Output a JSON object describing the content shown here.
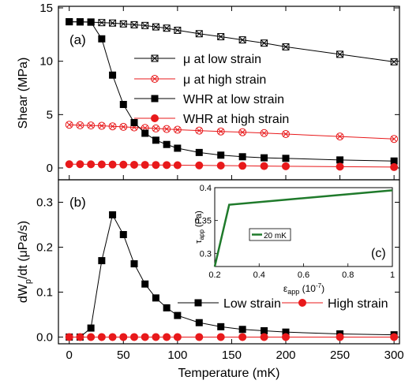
{
  "chart_data": [
    {
      "panel": "(a)",
      "type": "scatter",
      "ylabel": "Shear (MPa)",
      "ylim": [
        0,
        15
      ],
      "yticks": [
        "0",
        "5",
        "10",
        "15"
      ],
      "xlim": [
        -10,
        305
      ],
      "series": [
        {
          "name": "μ at low strain",
          "color": "#000000",
          "marker": "x-square",
          "points": [
            [
              0,
              13.7
            ],
            [
              10,
              13.68
            ],
            [
              20,
              13.66
            ],
            [
              30,
              13.62
            ],
            [
              40,
              13.58
            ],
            [
              50,
              13.5
            ],
            [
              60,
              13.42
            ],
            [
              70,
              13.35
            ],
            [
              80,
              13.22
            ],
            [
              90,
              13.1
            ],
            [
              100,
              12.9
            ],
            [
              120,
              12.58
            ],
            [
              140,
              12.3
            ],
            [
              160,
              12.0
            ],
            [
              180,
              11.7
            ],
            [
              200,
              11.35
            ],
            [
              250,
              10.65
            ],
            [
              300,
              9.95
            ]
          ]
        },
        {
          "name": "μ at high strain",
          "color": "#e8191b",
          "marker": "x-circle",
          "points": [
            [
              0,
              4.05
            ],
            [
              10,
              4.0
            ],
            [
              20,
              3.98
            ],
            [
              30,
              3.95
            ],
            [
              40,
              3.9
            ],
            [
              50,
              3.85
            ],
            [
              60,
              3.8
            ],
            [
              70,
              3.75
            ],
            [
              80,
              3.7
            ],
            [
              90,
              3.65
            ],
            [
              100,
              3.58
            ],
            [
              120,
              3.5
            ],
            [
              140,
              3.42
            ],
            [
              160,
              3.35
            ],
            [
              180,
              3.27
            ],
            [
              200,
              3.18
            ],
            [
              250,
              2.95
            ],
            [
              300,
              2.72
            ]
          ]
        },
        {
          "name": "WHR at low strain",
          "color": "#000000",
          "marker": "square",
          "points": [
            [
              0,
              13.7
            ],
            [
              10,
              13.7
            ],
            [
              20,
              13.68
            ],
            [
              30,
              12.1
            ],
            [
              40,
              8.7
            ],
            [
              50,
              5.95
            ],
            [
              60,
              4.25
            ],
            [
              70,
              3.25
            ],
            [
              80,
              2.6
            ],
            [
              90,
              2.2
            ],
            [
              100,
              1.85
            ],
            [
              120,
              1.45
            ],
            [
              140,
              1.2
            ],
            [
              160,
              1.05
            ],
            [
              180,
              0.95
            ],
            [
              200,
              0.9
            ],
            [
              250,
              0.75
            ],
            [
              300,
              0.65
            ]
          ]
        },
        {
          "name": "WHR at high strain",
          "color": "#e8191b",
          "marker": "circle",
          "points": [
            [
              0,
              0.35
            ],
            [
              10,
              0.35
            ],
            [
              20,
              0.34
            ],
            [
              30,
              0.33
            ],
            [
              40,
              0.32
            ],
            [
              50,
              0.31
            ],
            [
              60,
              0.3
            ],
            [
              70,
              0.29
            ],
            [
              80,
              0.28
            ],
            [
              90,
              0.27
            ],
            [
              100,
              0.26
            ],
            [
              120,
              0.24
            ],
            [
              140,
              0.22
            ],
            [
              160,
              0.2
            ],
            [
              180,
              0.18
            ],
            [
              200,
              0.16
            ],
            [
              250,
              0.12
            ],
            [
              300,
              0.08
            ]
          ]
        }
      ]
    },
    {
      "panel": "(b)",
      "type": "scatter",
      "ylabel_main": "dW",
      "ylabel_sub": "p",
      "ylabel_rest": "/dt (μPa/s)",
      "ylim": [
        -0.015,
        0.35
      ],
      "yticks": [
        "0.0",
        "0.1",
        "0.2",
        "0.3"
      ],
      "xlabel": "Temperature (mK)",
      "xlim": [
        -10,
        305
      ],
      "xticks": [
        "0",
        "50",
        "100",
        "150",
        "200",
        "250",
        "300"
      ],
      "series": [
        {
          "name": "Low strain",
          "color": "#000000",
          "marker": "square",
          "points": [
            [
              0,
              0.0
            ],
            [
              10,
              0.0
            ],
            [
              20,
              0.02
            ],
            [
              30,
              0.17
            ],
            [
              40,
              0.272
            ],
            [
              50,
              0.228
            ],
            [
              60,
              0.163
            ],
            [
              70,
              0.118
            ],
            [
              80,
              0.087
            ],
            [
              90,
              0.065
            ],
            [
              100,
              0.048
            ],
            [
              120,
              0.032
            ],
            [
              140,
              0.023
            ],
            [
              160,
              0.017
            ],
            [
              180,
              0.014
            ],
            [
              200,
              0.011
            ],
            [
              250,
              0.007
            ],
            [
              300,
              0.005
            ]
          ]
        },
        {
          "name": "High strain",
          "color": "#e8191b",
          "marker": "circle",
          "points": [
            [
              0,
              0.0
            ],
            [
              10,
              0.0
            ],
            [
              20,
              0.0
            ],
            [
              30,
              0.0
            ],
            [
              40,
              0.0
            ],
            [
              50,
              0.0
            ],
            [
              60,
              0.0
            ],
            [
              70,
              0.0
            ],
            [
              80,
              0.0
            ],
            [
              90,
              0.0
            ],
            [
              100,
              0.0
            ],
            [
              120,
              0.0
            ],
            [
              140,
              0.0
            ],
            [
              160,
              0.0
            ],
            [
              180,
              0.0
            ],
            [
              200,
              0.0
            ],
            [
              250,
              0.0
            ],
            [
              300,
              0.0
            ]
          ]
        }
      ]
    },
    {
      "panel": "(c)",
      "type": "line",
      "ylabel_main": "τ",
      "ylabel_sub": "app",
      "ylabel_rest": " (Pa)",
      "xlabel_main": "ε",
      "xlabel_sub": "app",
      "xlabel_rest": " (10",
      "xlabel_sup": "-7",
      "xlabel_end": ")",
      "xlim": [
        0.2,
        1.0
      ],
      "ylim": [
        0.28,
        0.4
      ],
      "xticks": [
        "0.2",
        "0.4",
        "0.6",
        "0.8",
        "1"
      ],
      "yticks": [
        "0.3",
        "0.35",
        "0.4"
      ],
      "series": [
        {
          "name": "20 mK",
          "color": "#1f7a2b",
          "points": [
            [
              0.2,
              0.28
            ],
            [
              0.265,
              0.374
            ],
            [
              1.0,
              0.396
            ]
          ]
        }
      ]
    }
  ]
}
